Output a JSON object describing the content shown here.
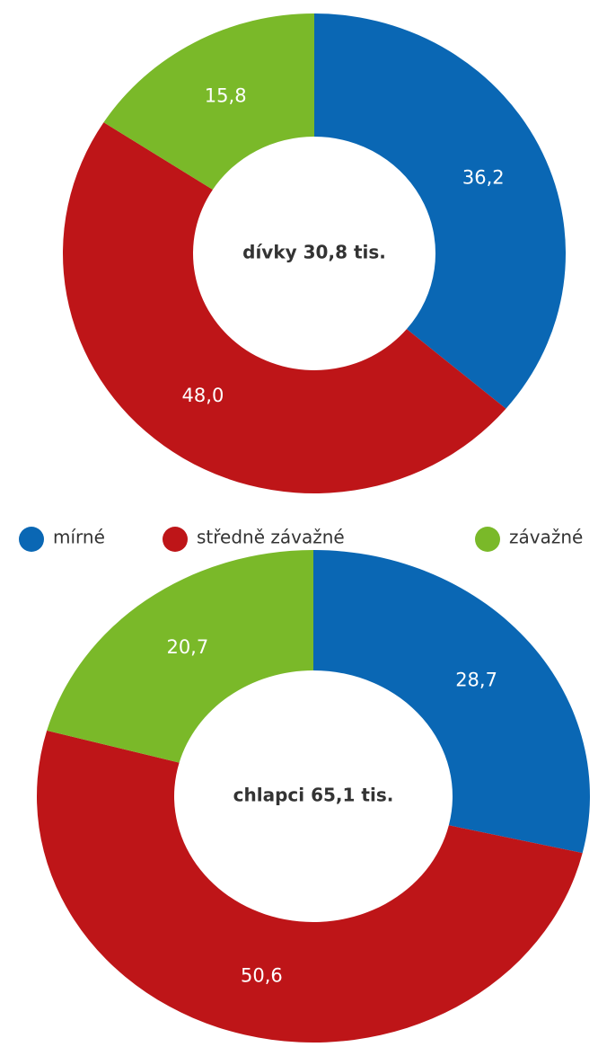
{
  "legend": {
    "categories": [
      "mírné",
      "středně závažné",
      "závažné"
    ],
    "colors": [
      "#0a67b4",
      "#be1518",
      "#7ab929"
    ]
  },
  "chart_data": [
    {
      "type": "pie",
      "title": "dívky 30,8 tis.",
      "values": [
        36.2,
        48.0,
        15.8
      ],
      "value_labels": [
        "36,2",
        "48,0",
        "15,8"
      ]
    },
    {
      "type": "pie",
      "title": "chlapci 65,1 tis.",
      "values": [
        28.7,
        50.6,
        20.7
      ],
      "value_labels": [
        "28,7",
        "50,6",
        "20,7"
      ]
    }
  ]
}
